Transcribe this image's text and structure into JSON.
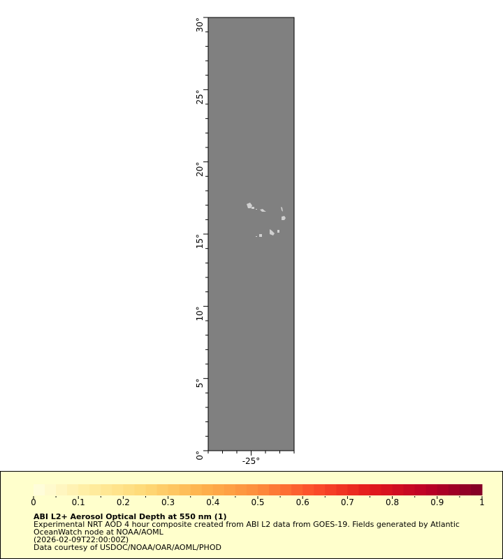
{
  "map": {
    "lat_ticks": [
      "0°",
      "5°",
      "10°",
      "15°",
      "20°",
      "25°",
      "30°"
    ],
    "lat_values": [
      0,
      5,
      10,
      15,
      20,
      25,
      30
    ],
    "lon_ticks": [
      "-25°"
    ],
    "lon_values": [
      -25
    ],
    "lat_range": [
      0,
      30
    ],
    "lon_range": [
      -28,
      -22
    ],
    "ocean_color": "#808080",
    "land_color": "#d0d0d0"
  },
  "legend": {
    "ticks": [
      "0",
      "0.1",
      "0.2",
      "0.3",
      "0.4",
      "0.5",
      "0.6",
      "0.7",
      "0.8",
      "0.9",
      "1"
    ],
    "range": [
      0,
      1
    ],
    "palette": [
      "#ffffe0",
      "#ffeda0",
      "#fed976",
      "#feb24c",
      "#fd8d3c",
      "#fc4e2a",
      "#e31a1c",
      "#bd0026",
      "#800026"
    ],
    "title": "ABI L2+ Aerosol Optical Depth at 550 nm (1)",
    "line1": "Experimental NRT AOD 4 hour composite created from ABI L2 data from GOES-19. Fields generated by Atlantic",
    "line2": "OceanWatch node at NOAA/AOML",
    "line3": "(2026-02-09T22:00:00Z)",
    "line4": "Data courtesy of USDOC/NOAA/OAR/AOML/PHOD"
  }
}
